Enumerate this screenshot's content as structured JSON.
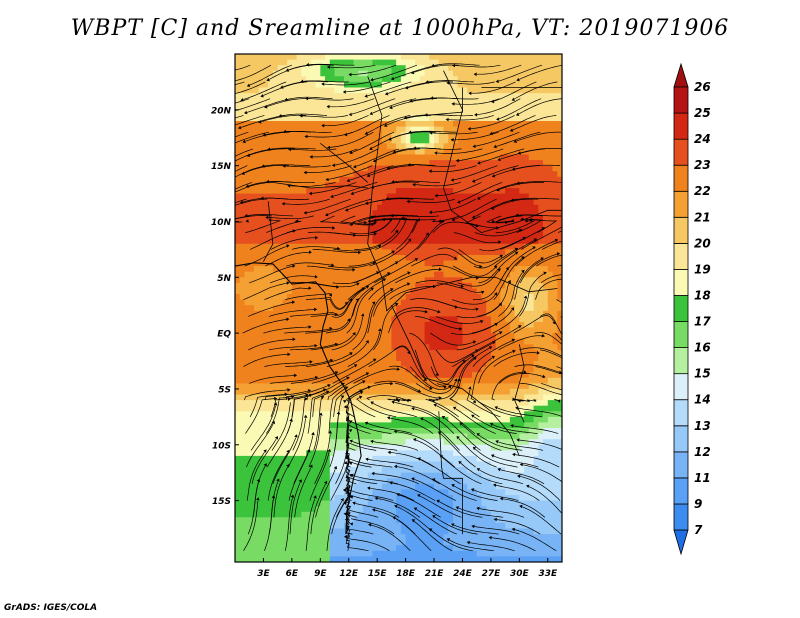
{
  "title": "WBPT [C] and Sreamline at 1000hPa, VT: 2019071906",
  "credit": "GrADS: IGES/COLA",
  "chart_data": {
    "type": "heatmap",
    "title": "WBPT [C] and Sreamline at 1000hPa, VT: 2019071906",
    "variable": "Wet-bulb potential temperature [C]",
    "overlay": "Streamlines at 1000hPa",
    "valid_time": "2019071906",
    "x_range": [
      0,
      34.5
    ],
    "y_range": [
      -20.5,
      25
    ],
    "x_ticks": [
      {
        "value": 3,
        "label": "3E"
      },
      {
        "value": 6,
        "label": "6E"
      },
      {
        "value": 9,
        "label": "9E"
      },
      {
        "value": 12,
        "label": "12E"
      },
      {
        "value": 15,
        "label": "15E"
      },
      {
        "value": 18,
        "label": "18E"
      },
      {
        "value": 21,
        "label": "21E"
      },
      {
        "value": 24,
        "label": "24E"
      },
      {
        "value": 27,
        "label": "27E"
      },
      {
        "value": 30,
        "label": "30E"
      },
      {
        "value": 33,
        "label": "33E"
      }
    ],
    "y_ticks": [
      {
        "value": 20,
        "label": "20N"
      },
      {
        "value": 15,
        "label": "15N"
      },
      {
        "value": 10,
        "label": "10N"
      },
      {
        "value": 5,
        "label": "5N"
      },
      {
        "value": 0,
        "label": "EQ"
      },
      {
        "value": -5,
        "label": "5S"
      },
      {
        "value": -10,
        "label": "10S"
      },
      {
        "value": -15,
        "label": "15S"
      }
    ],
    "colorbar": {
      "levels": [
        "7",
        "9",
        "11",
        "12",
        "13",
        "14",
        "15",
        "16",
        "17",
        "18",
        "19",
        "20",
        "21",
        "22",
        "23",
        "24",
        "25",
        "26"
      ],
      "colors": [
        "#1e6ee6",
        "#3c8cf0",
        "#5aa0f5",
        "#78b4f5",
        "#96c8f8",
        "#b4dcfa",
        "#dcf0fa",
        "#b4f0a0",
        "#78dc64",
        "#3cc33c",
        "#fafab4",
        "#fae696",
        "#f5c864",
        "#f5a032",
        "#f0821e",
        "#e6501e",
        "#d22814",
        "#b41414",
        "#a01010"
      ]
    }
  }
}
